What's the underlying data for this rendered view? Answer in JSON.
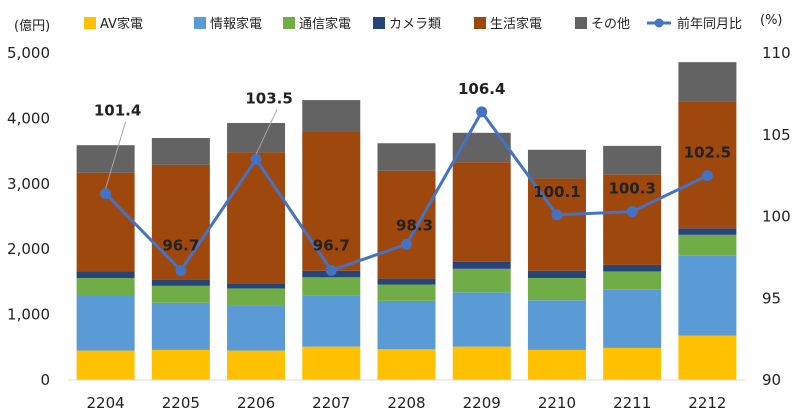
{
  "chart_data": {
    "type": "bar",
    "stacked": true,
    "categories": [
      "2204",
      "2205",
      "2206",
      "2207",
      "2208",
      "2209",
      "2210",
      "2211",
      "2212"
    ],
    "series": [
      {
        "name": "AV家電",
        "color": "#FFC000",
        "values": [
          450,
          460,
          450,
          510,
          470,
          510,
          460,
          490,
          680
        ]
      },
      {
        "name": "情報家電",
        "color": "#5B9BD5",
        "values": [
          850,
          720,
          690,
          780,
          740,
          830,
          760,
          890,
          1220
        ]
      },
      {
        "name": "通信家電",
        "color": "#70AD47",
        "values": [
          260,
          260,
          260,
          280,
          250,
          360,
          340,
          280,
          320
        ]
      },
      {
        "name": "カメラ類",
        "color": "#264478",
        "values": [
          100,
          100,
          80,
          100,
          90,
          110,
          110,
          100,
          100
        ]
      },
      {
        "name": "生活家電",
        "color": "#9E480E",
        "values": [
          1510,
          1750,
          2000,
          2130,
          1650,
          1520,
          1410,
          1380,
          1940
        ]
      },
      {
        "name": "その他",
        "color": "#636363",
        "values": [
          420,
          410,
          450,
          480,
          420,
          450,
          440,
          440,
          600
        ]
      }
    ],
    "line": {
      "name": "前年同月比",
      "color": "#4472C4",
      "values": [
        101.4,
        96.7,
        103.5,
        96.7,
        98.3,
        106.4,
        100.1,
        100.3,
        102.5
      ],
      "labels": [
        "101.4",
        "96.7",
        "103.5",
        "96.7",
        "98.3",
        "106.4",
        "100.1",
        "100.3",
        "102.5"
      ]
    },
    "y_left": {
      "unit": "(億円)",
      "min": 0,
      "max": 5000,
      "ticks": [
        "0",
        "1,000",
        "2,000",
        "3,000",
        "4,000",
        "5,000"
      ]
    },
    "y_right": {
      "unit": "(%)",
      "min": 90,
      "max": 110,
      "ticks": [
        "90",
        "95",
        "100",
        "105",
        "110"
      ]
    },
    "legend_position": "top",
    "grid": false
  }
}
